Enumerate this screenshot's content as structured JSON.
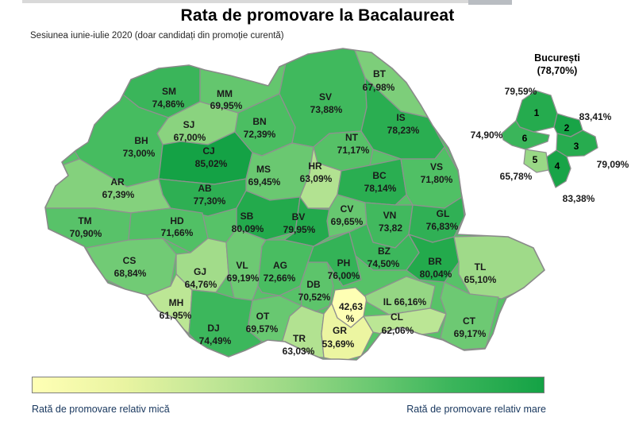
{
  "header": {
    "title": "Rata de promovare la Bacalaureat",
    "subtitle": "Sesiunea iunie-iulie 2020 (doar candidați din promoție curentă)"
  },
  "legend": {
    "low_label": "Rată de promovare relativ mică",
    "high_label": "Rată de promovare relativ mare",
    "color_low": "#ffffb5",
    "color_high": "#14a245",
    "border_color": "#7f7f7f",
    "label_color": "#17365d"
  },
  "bucharest": {
    "title": "București",
    "overall_label": "(78,70%)",
    "overall_value": 78.7,
    "sectors": [
      {
        "sector": "1",
        "value": 79.59,
        "value_label": "79,59%"
      },
      {
        "sector": "2",
        "value": 83.41,
        "value_label": "83,41%"
      },
      {
        "sector": "3",
        "value": 79.09,
        "value_label": "79,09%"
      },
      {
        "sector": "4",
        "value": 83.38,
        "value_label": "83,38%"
      },
      {
        "sector": "5",
        "value": 65.78,
        "value_label": "65,78%"
      },
      {
        "sector": "6",
        "value": 74.9,
        "value_label": "74,90%"
      }
    ]
  },
  "chart_data": {
    "type": "choropleth",
    "title": "Rata de promovare la Bacalaureat",
    "subtitle": "Sesiunea iunie-iulie 2020 (doar candidați din promoție curentă)",
    "unit": "%",
    "value_range": [
      42.63,
      85.02
    ],
    "counties": [
      {
        "code": "SM",
        "value": 74.86,
        "label_lines": [
          "SM",
          "74,86%"
        ]
      },
      {
        "code": "MM",
        "value": 69.95,
        "label_lines": [
          "MM",
          "69,95%"
        ]
      },
      {
        "code": "SV",
        "value": 73.88,
        "label_lines": [
          "SV",
          "73,88%"
        ]
      },
      {
        "code": "BT",
        "value": 67.98,
        "label_lines": [
          "BT",
          "67,98%"
        ]
      },
      {
        "code": "IS",
        "value": 78.23,
        "label_lines": [
          "IS",
          "78,23%"
        ]
      },
      {
        "code": "BN",
        "value": 72.39,
        "label_lines": [
          "BN",
          "72,39%"
        ]
      },
      {
        "code": "SJ",
        "value": 67.0,
        "label_lines": [
          "SJ",
          "67,00%"
        ]
      },
      {
        "code": "BH",
        "value": 73.0,
        "label_lines": [
          "BH",
          "73,00%"
        ]
      },
      {
        "code": "CJ",
        "value": 85.02,
        "label_lines": [
          "CJ",
          "85,02%"
        ]
      },
      {
        "code": "NT",
        "value": 71.17,
        "label_lines": [
          "NT",
          "71,17%"
        ]
      },
      {
        "code": "MS",
        "value": 69.45,
        "label_lines": [
          "MS",
          "69,45%"
        ]
      },
      {
        "code": "HR",
        "value": 63.09,
        "label_lines": [
          "HR",
          "63,09%"
        ]
      },
      {
        "code": "BC",
        "value": 78.14,
        "label_lines": [
          "BC",
          "78,14%"
        ]
      },
      {
        "code": "VS",
        "value": 71.8,
        "label_lines": [
          "VS",
          "71,80%"
        ]
      },
      {
        "code": "AR",
        "value": 67.39,
        "label_lines": [
          "AR",
          "67,39%"
        ]
      },
      {
        "code": "AB",
        "value": 77.3,
        "label_lines": [
          "AB",
          "77,30%"
        ]
      },
      {
        "code": "TM",
        "value": 70.9,
        "label_lines": [
          "TM",
          "70,90%"
        ]
      },
      {
        "code": "HD",
        "value": 71.66,
        "label_lines": [
          "HD",
          "71,66%"
        ]
      },
      {
        "code": "SB",
        "value": 80.09,
        "label_lines": [
          "SB",
          "80,09%"
        ]
      },
      {
        "code": "BV",
        "value": 79.95,
        "label_lines": [
          "BV",
          "79,95%"
        ]
      },
      {
        "code": "CV",
        "value": 69.65,
        "label_lines": [
          "CV",
          "69,65%"
        ]
      },
      {
        "code": "VN",
        "value": 73.82,
        "label_lines": [
          "VN",
          "73,82"
        ]
      },
      {
        "code": "GL",
        "value": 76.83,
        "label_lines": [
          "GL",
          "76,83%"
        ]
      },
      {
        "code": "CS",
        "value": 68.84,
        "label_lines": [
          "CS",
          "68,84%"
        ]
      },
      {
        "code": "GJ",
        "value": 64.76,
        "label_lines": [
          "GJ",
          "64,76%"
        ]
      },
      {
        "code": "VL",
        "value": 69.19,
        "label_lines": [
          "VL",
          "69,19%"
        ]
      },
      {
        "code": "AG",
        "value": 72.66,
        "label_lines": [
          "AG",
          "72,66%"
        ]
      },
      {
        "code": "DB",
        "value": 70.52,
        "label_lines": [
          "DB",
          "70,52%"
        ]
      },
      {
        "code": "PH",
        "value": 76.0,
        "label_lines": [
          "PH",
          "76,00%"
        ]
      },
      {
        "code": "BZ",
        "value": 74.5,
        "label_lines": [
          "BZ",
          "74,50%"
        ]
      },
      {
        "code": "BR",
        "value": 80.04,
        "label_lines": [
          "BR",
          "80,04%"
        ]
      },
      {
        "code": "TL",
        "value": 65.1,
        "label_lines": [
          "TL",
          "65,10%"
        ]
      },
      {
        "code": "MH",
        "value": 61.95,
        "label_lines": [
          "MH",
          "61,95%"
        ]
      },
      {
        "code": "DJ",
        "value": 74.49,
        "label_lines": [
          "DJ",
          "74,49%"
        ]
      },
      {
        "code": "OT",
        "value": 69.57,
        "label_lines": [
          "OT",
          "69,57%"
        ]
      },
      {
        "code": "TR",
        "value": 63.03,
        "label_lines": [
          "TR",
          "63,03%"
        ]
      },
      {
        "code": "GR",
        "value": 53.69,
        "label_lines": [
          "GR",
          "53,69%"
        ]
      },
      {
        "code": "IF",
        "value": 42.63,
        "label_lines": [
          "42,63",
          "%"
        ]
      },
      {
        "code": "IL",
        "value": 66.16,
        "label_lines": [
          "IL 66,16%"
        ]
      },
      {
        "code": "CL",
        "value": 62.06,
        "label_lines": [
          "CL",
          "62,06%"
        ]
      },
      {
        "code": "CT",
        "value": 69.17,
        "label_lines": [
          "CT",
          "69,17%"
        ]
      }
    ]
  }
}
